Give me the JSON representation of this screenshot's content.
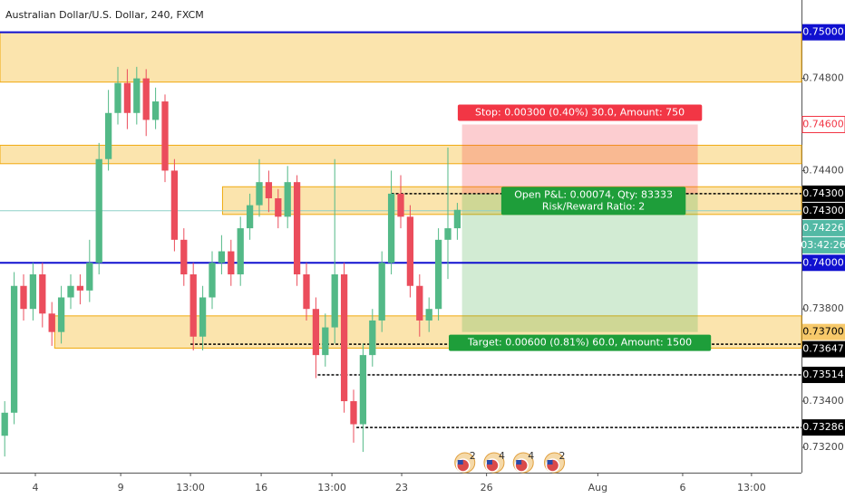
{
  "chart_data": {
    "type": "candlestick",
    "title": "Australian Dollar/U.S. Dollar, 240, FXCM",
    "open": [
      0.7325,
      0.7335,
      0.739,
      0.738,
      0.7395,
      0.7378,
      0.737,
      0.7385,
      0.739,
      0.7388,
      0.74,
      0.7445,
      0.7465,
      0.7478,
      0.7465,
      0.748,
      0.7462,
      0.747,
      0.744,
      0.741,
      0.7395,
      0.7368,
      0.7385,
      0.74,
      0.7405,
      0.7395,
      0.7415,
      0.7425,
      0.7435,
      0.7428,
      0.742,
      0.7435,
      0.7395,
      0.738,
      0.736,
      0.7372,
      0.7395,
      0.734,
      0.733,
      0.736,
      0.7375,
      0.74,
      0.743,
      0.742,
      0.739,
      0.7375,
      0.738,
      0.741,
      0.7415
    ],
    "high": [
      0.734,
      0.7396,
      0.7395,
      0.74,
      0.74,
      0.7383,
      0.739,
      0.7395,
      0.7395,
      0.741,
      0.7452,
      0.7475,
      0.7485,
      0.7484,
      0.7485,
      0.7484,
      0.7476,
      0.7473,
      0.7445,
      0.7415,
      0.74,
      0.739,
      0.7405,
      0.7412,
      0.741,
      0.742,
      0.743,
      0.7445,
      0.744,
      0.7432,
      0.7442,
      0.7438,
      0.74,
      0.7385,
      0.7378,
      0.7445,
      0.74,
      0.7345,
      0.7365,
      0.738,
      0.7405,
      0.744,
      0.7438,
      0.7425,
      0.7395,
      0.7385,
      0.7415,
      0.745,
      0.7426
    ],
    "low": [
      0.7316,
      0.733,
      0.7375,
      0.7375,
      0.7372,
      0.7364,
      0.7365,
      0.738,
      0.7382,
      0.7383,
      0.7395,
      0.744,
      0.746,
      0.7458,
      0.746,
      0.7455,
      0.7458,
      0.7435,
      0.7405,
      0.739,
      0.7362,
      0.7362,
      0.738,
      0.7395,
      0.739,
      0.739,
      0.741,
      0.742,
      0.7422,
      0.7415,
      0.7415,
      0.739,
      0.7375,
      0.735,
      0.7355,
      0.7365,
      0.7335,
      0.7322,
      0.7318,
      0.7355,
      0.737,
      0.7395,
      0.7415,
      0.7385,
      0.7368,
      0.737,
      0.7375,
      0.7393,
      0.741
    ],
    "close": [
      0.7335,
      0.739,
      0.738,
      0.7395,
      0.7378,
      0.737,
      0.7385,
      0.739,
      0.7388,
      0.74,
      0.7445,
      0.7465,
      0.7478,
      0.7465,
      0.748,
      0.7462,
      0.747,
      0.744,
      0.741,
      0.7395,
      0.7368,
      0.7385,
      0.74,
      0.7405,
      0.7395,
      0.7415,
      0.7425,
      0.7435,
      0.7428,
      0.742,
      0.7435,
      0.7395,
      0.738,
      0.736,
      0.7372,
      0.7395,
      0.734,
      0.733,
      0.736,
      0.7375,
      0.74,
      0.743,
      0.742,
      0.739,
      0.7375,
      0.738,
      0.741,
      0.7415,
      0.7423
    ],
    "up_color": "#53b987",
    "down_color": "#eb4d5c",
    "xlim": [
      0,
      85
    ],
    "xticks": [
      {
        "value": 3.75,
        "label": "4"
      },
      {
        "value": 12.8,
        "label": "9"
      },
      {
        "value": 20.2,
        "label": "13:00"
      },
      {
        "value": 27.7,
        "label": "16"
      },
      {
        "value": 35.2,
        "label": "13:00"
      },
      {
        "value": 42.6,
        "label": "23"
      },
      {
        "value": 51.6,
        "label": "26"
      },
      {
        "value": 63.4,
        "label": "Aug"
      },
      {
        "value": 72.4,
        "label": "6"
      },
      {
        "value": 79.7,
        "label": "13:00"
      }
    ],
    "ylim": [
      0.7309,
      0.7514
    ],
    "yticks": [
      {
        "value": 0.732,
        "label": "0.73200"
      },
      {
        "value": 0.734,
        "label": "0.73400"
      },
      {
        "value": 0.738,
        "label": "0.73800"
      },
      {
        "value": 0.744,
        "label": "0.74400"
      },
      {
        "value": 0.748,
        "label": "0.74800"
      }
    ],
    "zones": [
      {
        "from": 0,
        "to": 85,
        "top": 0.75,
        "bottom": 0.74784
      },
      {
        "from": 0,
        "to": 85,
        "top": 0.7451,
        "bottom": 0.7443
      },
      {
        "from": 23.6,
        "to": 85,
        "top": 0.7433,
        "bottom": 0.7421
      },
      {
        "from": 5.8,
        "to": 85,
        "top": 0.7377,
        "bottom": 0.7363
      }
    ],
    "lines": [
      {
        "value": 0.75,
        "from": 0,
        "color": "#1010d0",
        "style": "solid"
      },
      {
        "value": 0.74,
        "from": 0,
        "color": "#1010d0",
        "style": "solid"
      },
      {
        "value": 0.743,
        "from": 41.5,
        "color": "#000000",
        "style": "dashed"
      },
      {
        "value": 0.73647,
        "from": 20.2,
        "color": "#000000",
        "style": "dashed"
      },
      {
        "value": 0.73514,
        "from": 33.7,
        "color": "#000000",
        "style": "dashed"
      },
      {
        "value": 0.73286,
        "from": 37.8,
        "color": "#000000",
        "style": "dashed"
      },
      {
        "value": 0.74226,
        "from": 0,
        "color": "#8fd0c8",
        "style": "solid"
      }
    ],
    "position": {
      "from": 49,
      "to": 74,
      "entry": 0.743,
      "stop": 0.746,
      "target": 0.737,
      "stop_label": "Stop: 0.00300 (0.40%) 30.0, Amount: 750",
      "pnl_label": "Open P&L: 0.00074, Qty: 83333",
      "rr_label": "Risk/Reward Ratio: 2",
      "target_label": "Target: 0.00600 (0.81%) 60.0, Amount: 1500"
    },
    "axis_labels": [
      {
        "value": 0.75,
        "label": "0.75000",
        "bg": "#1010d0",
        "fg": "#ffffff"
      },
      {
        "value": 0.746,
        "label": "0.74600",
        "bg": "#ffffff",
        "fg": "#f23645"
      },
      {
        "value": 0.743,
        "label": "0.74300",
        "bg": "#000000",
        "fg": "#ffffff"
      },
      {
        "value": 0.743,
        "label": "0.74300",
        "bg": "#000000",
        "fg": "#ffffff"
      },
      {
        "value": 0.74226,
        "label": "0.74226",
        "bg": "#53b9a5",
        "fg": "#ffffff"
      },
      {
        "value": 0.74,
        "label": "0.74000",
        "bg": "#1010d0",
        "fg": "#ffffff"
      },
      {
        "value": 0.737,
        "label": "0.73700",
        "bg": "#f7c96a",
        "fg": "#000000"
      },
      {
        "value": 0.73647,
        "label": "0.73647",
        "bg": "#000000",
        "fg": "#ffffff"
      },
      {
        "value": 0.73514,
        "label": "0.73514",
        "bg": "#000000",
        "fg": "#ffffff"
      },
      {
        "value": 0.73286,
        "label": "0.73286",
        "bg": "#000000",
        "fg": "#ffffff"
      }
    ],
    "countdown": "03:42:26",
    "events": [
      {
        "x": 49.3,
        "count": 2
      },
      {
        "x": 52.4,
        "count": 4
      },
      {
        "x": 55.5,
        "count": 4
      },
      {
        "x": 58.8,
        "count": 2
      }
    ]
  }
}
